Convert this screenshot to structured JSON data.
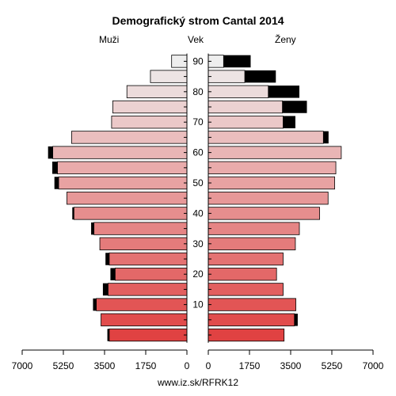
{
  "chart_data": {
    "type": "bar",
    "title": "Demografický strom Cantal 2014",
    "left_label": "Muži",
    "center_label": "Vek",
    "right_label": "Ženy",
    "footer": "www.iz.sk/RFRK12",
    "x_ticks_left": [
      "7000",
      "5250",
      "3500",
      "1750",
      "0"
    ],
    "x_ticks_right": [
      "0",
      "1750",
      "3500",
      "5250",
      "7000"
    ],
    "xlim": [
      0,
      7000
    ],
    "age_labels": [
      "10",
      "20",
      "30",
      "40",
      "50",
      "60",
      "70",
      "80",
      "90"
    ],
    "age_groups": [
      "0-4",
      "5-9",
      "10-14",
      "15-19",
      "20-24",
      "25-29",
      "30-34",
      "35-39",
      "40-44",
      "45-49",
      "50-54",
      "55-59",
      "60-64",
      "65-69",
      "70-74",
      "75-79",
      "80-84",
      "85-89",
      "90+"
    ],
    "series": [
      {
        "name": "Muži",
        "values": [
          3300,
          3650,
          3850,
          3350,
          3050,
          3300,
          3700,
          3950,
          4800,
          5100,
          5450,
          5500,
          5700,
          4900,
          3200,
          3150,
          2550,
          1550,
          650
        ],
        "excess": [
          80,
          0,
          140,
          220,
          200,
          160,
          0,
          120,
          70,
          0,
          180,
          220,
          200,
          0,
          0,
          0,
          0,
          0,
          0
        ]
      },
      {
        "name": "Ženy",
        "values": [
          3220,
          3660,
          3720,
          3180,
          2900,
          3180,
          3700,
          3870,
          4730,
          5090,
          5370,
          5420,
          5650,
          4890,
          3180,
          3150,
          2550,
          1550,
          650
        ],
        "excess": [
          0,
          140,
          0,
          0,
          0,
          0,
          0,
          0,
          0,
          0,
          0,
          0,
          0,
          220,
          520,
          1040,
          1320,
          1320,
          1150
        ]
      }
    ]
  }
}
